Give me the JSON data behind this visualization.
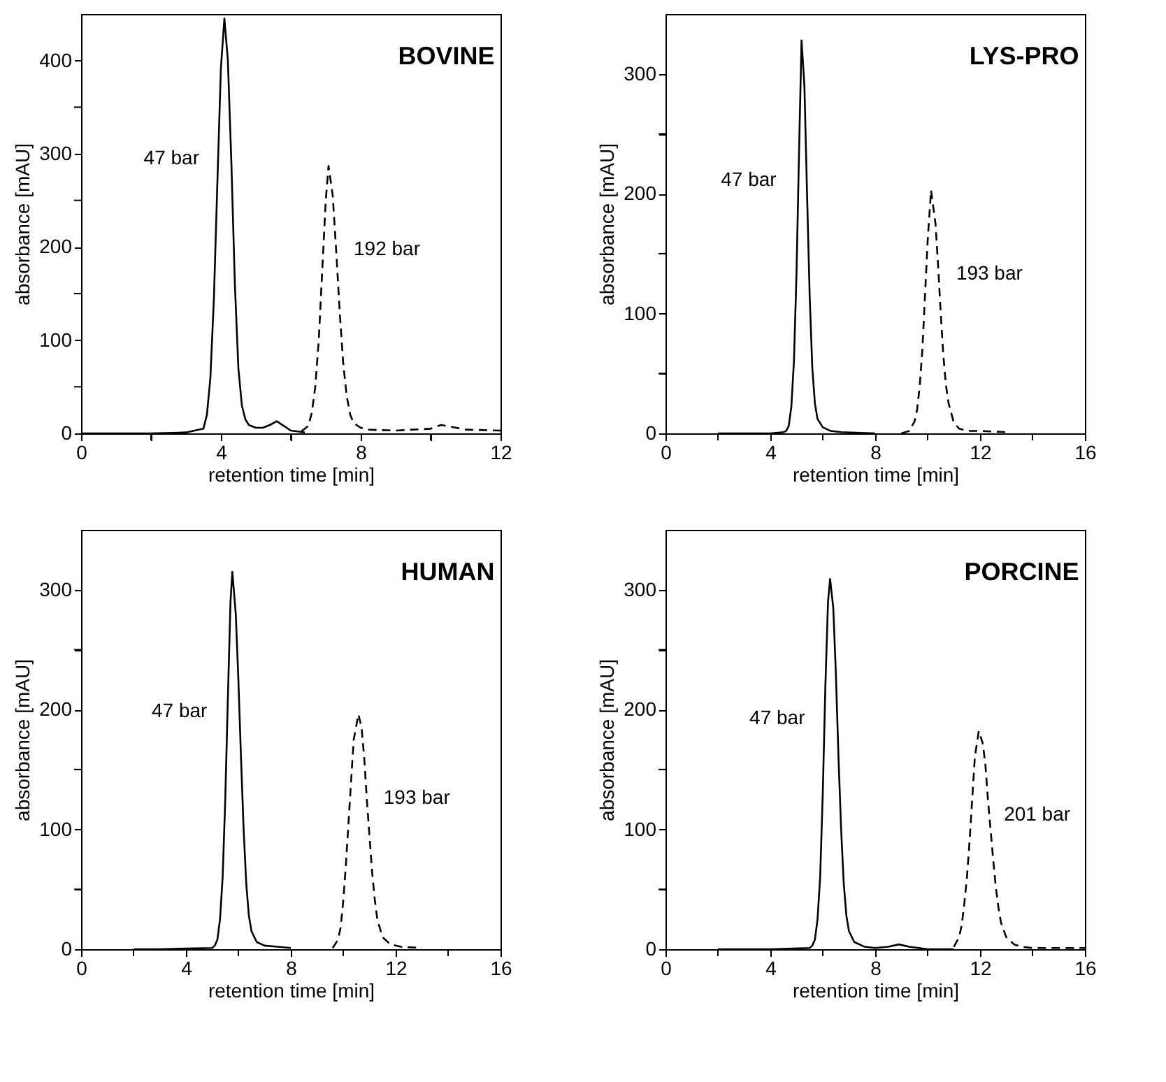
{
  "chart_data": [
    {
      "type": "line",
      "title": "BOVINE",
      "xlabel": "retention time [min]",
      "ylabel": "absorbance [mAU]",
      "xlim": [
        0,
        12
      ],
      "ylim": [
        0,
        450
      ],
      "xticks": [
        0,
        {
          "value": 2,
          "label": null
        },
        4,
        {
          "value": 6,
          "label": null
        },
        8,
        {
          "value": 10,
          "label": null
        },
        12
      ],
      "yticks": [
        0,
        {
          "value": 50,
          "label": null
        },
        100,
        {
          "value": 150,
          "label": null
        },
        200,
        {
          "value": 250,
          "label": null
        },
        300,
        {
          "value": 350,
          "label": null
        },
        400
      ],
      "grid": false,
      "marker": "none",
      "series": [
        {
          "name": "47 bar",
          "color": "#000000",
          "line_style": "solid",
          "x": [
            0,
            2,
            3,
            3.5,
            3.6,
            3.7,
            3.8,
            3.9,
            4.0,
            4.1,
            4.2,
            4.3,
            4.4,
            4.5,
            4.6,
            4.7,
            4.8,
            5.0,
            5.2,
            5.4,
            5.6,
            5.8,
            6.0,
            6.2,
            6.4
          ],
          "values": [
            0,
            0,
            1,
            5,
            20,
            60,
            145,
            270,
            392,
            445,
            400,
            290,
            160,
            70,
            30,
            15,
            9,
            6,
            6,
            9,
            13,
            8,
            3,
            2,
            1
          ]
        },
        {
          "name": "192 bar",
          "color": "#000000",
          "line_style": "dashed",
          "x": [
            6.3,
            6.5,
            6.6,
            6.7,
            6.8,
            6.9,
            7.0,
            7.08,
            7.2,
            7.3,
            7.4,
            7.5,
            7.6,
            7.7,
            7.8,
            8.0,
            8.2,
            9,
            10,
            10.3,
            10.6,
            11,
            12
          ],
          "values": [
            2,
            8,
            22,
            50,
            100,
            175,
            250,
            287,
            255,
            195,
            130,
            75,
            40,
            20,
            11,
            6,
            4,
            3,
            5,
            9,
            7,
            4,
            3
          ]
        }
      ]
    },
    {
      "type": "line",
      "title": "LYS-PRO",
      "xlabel": "retention time [min]",
      "ylabel": "absorbance [mAU]",
      "xlim": [
        0,
        16
      ],
      "ylim": [
        0,
        350
      ],
      "xticks": [
        0,
        {
          "value": 2,
          "label": null
        },
        4,
        {
          "value": 6,
          "label": null
        },
        8,
        {
          "value": 10,
          "label": null
        },
        12,
        {
          "value": 14,
          "label": null
        },
        16
      ],
      "yticks": [
        0,
        {
          "value": 50,
          "label": null
        },
        100,
        {
          "value": 150,
          "label": null
        },
        200,
        {
          "value": 250,
          "label": null
        },
        300
      ],
      "grid": false,
      "marker": "none",
      "series": [
        {
          "name": "47 bar",
          "color": "#000000",
          "line_style": "solid",
          "x": [
            2,
            4,
            4.5,
            4.6,
            4.7,
            4.8,
            4.9,
            5.0,
            5.1,
            5.19,
            5.3,
            5.4,
            5.5,
            5.6,
            5.7,
            5.8,
            6.0,
            6.3,
            6.7,
            8
          ],
          "values": [
            0,
            0,
            1,
            2,
            6,
            22,
            60,
            135,
            240,
            328,
            290,
            200,
            115,
            55,
            25,
            12,
            5,
            2,
            1,
            0
          ]
        },
        {
          "name": "193 bar",
          "color": "#000000",
          "line_style": "dashed",
          "x": [
            9,
            9.3,
            9.5,
            9.6,
            9.7,
            9.8,
            9.9,
            10.0,
            10.13,
            10.3,
            10.4,
            10.5,
            10.6,
            10.7,
            10.8,
            11.0,
            11.2,
            11.5,
            12,
            13
          ],
          "values": [
            0,
            2,
            10,
            20,
            40,
            70,
            115,
            160,
            203,
            175,
            140,
            100,
            65,
            40,
            25,
            9,
            4,
            2,
            2,
            1
          ]
        }
      ]
    },
    {
      "type": "line",
      "title": "HUMAN",
      "xlabel": "retention time [min]",
      "ylabel": "absorbance [mAU]",
      "xlim": [
        0,
        16
      ],
      "ylim": [
        0,
        350
      ],
      "xticks": [
        0,
        {
          "value": 2,
          "label": null
        },
        4,
        {
          "value": 6,
          "label": null
        },
        8,
        {
          "value": 10,
          "label": null
        },
        12,
        {
          "value": 14,
          "label": null
        },
        16
      ],
      "yticks": [
        0,
        {
          "value": 50,
          "label": null
        },
        100,
        {
          "value": 150,
          "label": null
        },
        200,
        {
          "value": 250,
          "label": null
        },
        300
      ],
      "grid": false,
      "marker": "none",
      "series": [
        {
          "name": "47 bar",
          "color": "#000000",
          "line_style": "solid",
          "x": [
            2,
            3,
            5.0,
            5.1,
            5.2,
            5.3,
            5.4,
            5.5,
            5.6,
            5.7,
            5.77,
            5.9,
            6.0,
            6.1,
            6.2,
            6.3,
            6.4,
            6.5,
            6.7,
            7,
            7.5,
            8
          ],
          "values": [
            0,
            0,
            1,
            3,
            8,
            25,
            60,
            125,
            210,
            290,
            315,
            280,
            225,
            160,
            100,
            55,
            28,
            15,
            6,
            3,
            2,
            1
          ]
        },
        {
          "name": "193 bar",
          "color": "#000000",
          "line_style": "dashed",
          "x": [
            9.6,
            9.8,
            9.9,
            10.0,
            10.1,
            10.2,
            10.3,
            10.4,
            10.58,
            10.7,
            10.8,
            10.9,
            11.0,
            11.1,
            11.2,
            11.3,
            11.5,
            11.8,
            12.2,
            13
          ],
          "values": [
            1,
            8,
            18,
            40,
            70,
            105,
            140,
            175,
            196,
            185,
            160,
            125,
            95,
            65,
            42,
            25,
            10,
            4,
            2,
            1
          ]
        }
      ]
    },
    {
      "type": "line",
      "title": "PORCINE",
      "xlabel": "retention time [min]",
      "ylabel": "absorbance [mAU]",
      "xlim": [
        0,
        16
      ],
      "ylim": [
        0,
        350
      ],
      "xticks": [
        0,
        {
          "value": 2,
          "label": null
        },
        4,
        {
          "value": 6,
          "label": null
        },
        8,
        {
          "value": 10,
          "label": null
        },
        12,
        {
          "value": 14,
          "label": null
        },
        16
      ],
      "yticks": [
        0,
        {
          "value": 50,
          "label": null
        },
        100,
        {
          "value": 150,
          "label": null
        },
        200,
        {
          "value": 250,
          "label": null
        },
        300
      ],
      "grid": false,
      "marker": "none",
      "series": [
        {
          "name": "47 bar",
          "color": "#000000",
          "line_style": "solid",
          "x": [
            2,
            4,
            5.5,
            5.6,
            5.7,
            5.8,
            5.9,
            6.0,
            6.1,
            6.2,
            6.28,
            6.4,
            6.5,
            6.6,
            6.7,
            6.8,
            6.9,
            7.0,
            7.2,
            7.6,
            8.0,
            8.5,
            8.9,
            9.3,
            10,
            11
          ],
          "values": [
            0,
            0,
            1,
            3,
            8,
            25,
            60,
            130,
            220,
            290,
            309,
            285,
            230,
            160,
            100,
            55,
            28,
            15,
            6,
            2,
            1,
            2,
            4,
            2,
            0,
            0
          ]
        },
        {
          "name": "201 bar",
          "color": "#000000",
          "line_style": "dashed",
          "x": [
            11.0,
            11.2,
            11.3,
            11.4,
            11.5,
            11.6,
            11.7,
            11.8,
            11.95,
            12.1,
            12.2,
            12.3,
            12.4,
            12.5,
            12.6,
            12.7,
            12.8,
            13.0,
            13.3,
            13.6,
            14,
            16
          ],
          "values": [
            2,
            10,
            20,
            38,
            60,
            90,
            125,
            160,
            182,
            172,
            155,
            125,
            100,
            75,
            52,
            35,
            22,
            10,
            4,
            2,
            1,
            1
          ]
        }
      ]
    }
  ]
}
